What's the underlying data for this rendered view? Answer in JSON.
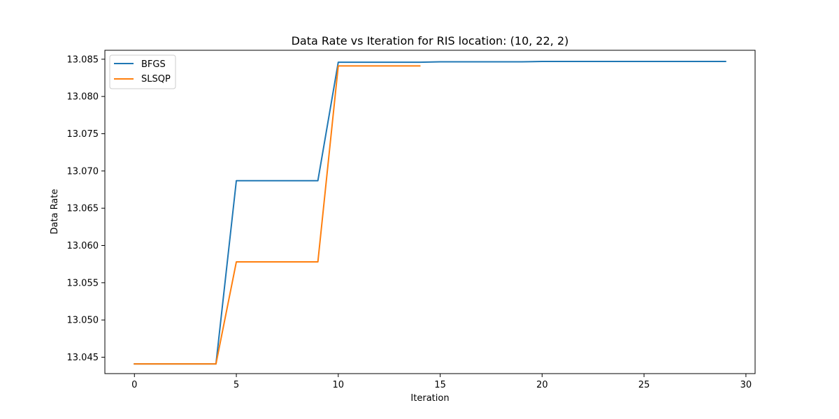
{
  "chart_data": {
    "type": "line",
    "title": "Data Rate vs Iteration for RIS location: (10, 22, 2)",
    "xlabel": "Iteration",
    "ylabel": "Data Rate",
    "xlim": [
      -1.45,
      30.45
    ],
    "ylim": [
      13.0428,
      13.0862
    ],
    "xticks": [
      0,
      5,
      10,
      15,
      20,
      25,
      30
    ],
    "xtick_labels": [
      "0",
      "5",
      "10",
      "15",
      "20",
      "25",
      "30"
    ],
    "yticks": [
      13.045,
      13.05,
      13.055,
      13.06,
      13.065,
      13.07,
      13.075,
      13.08,
      13.085
    ],
    "ytick_labels": [
      "13.045",
      "13.050",
      "13.055",
      "13.060",
      "13.065",
      "13.070",
      "13.075",
      "13.080",
      "13.085"
    ],
    "grid": false,
    "legend_position": "top-left",
    "series": [
      {
        "name": "BFGS",
        "color": "#1f77b4",
        "x": [
          0,
          1,
          2,
          3,
          4,
          5,
          6,
          7,
          8,
          9,
          10,
          11,
          12,
          13,
          14,
          15,
          16,
          17,
          18,
          19,
          20,
          21,
          22,
          23,
          24,
          25,
          26,
          27,
          28,
          29
        ],
        "values": [
          13.0441,
          13.0441,
          13.0441,
          13.0441,
          13.0441,
          13.0687,
          13.0687,
          13.0687,
          13.0687,
          13.0687,
          13.0846,
          13.0846,
          13.0846,
          13.0846,
          13.0846,
          13.08465,
          13.08465,
          13.08465,
          13.08465,
          13.08465,
          13.0847,
          13.0847,
          13.0847,
          13.0847,
          13.0847,
          13.0847,
          13.0847,
          13.0847,
          13.0847,
          13.0847
        ]
      },
      {
        "name": "SLSQP",
        "color": "#ff7f0e",
        "x": [
          0,
          1,
          2,
          3,
          4,
          5,
          6,
          7,
          8,
          9,
          10,
          11,
          12,
          13,
          14
        ],
        "values": [
          13.0441,
          13.0441,
          13.0441,
          13.0441,
          13.0441,
          13.0578,
          13.0578,
          13.0578,
          13.0578,
          13.0578,
          13.0841,
          13.0841,
          13.0841,
          13.0841,
          13.0841
        ]
      }
    ]
  }
}
